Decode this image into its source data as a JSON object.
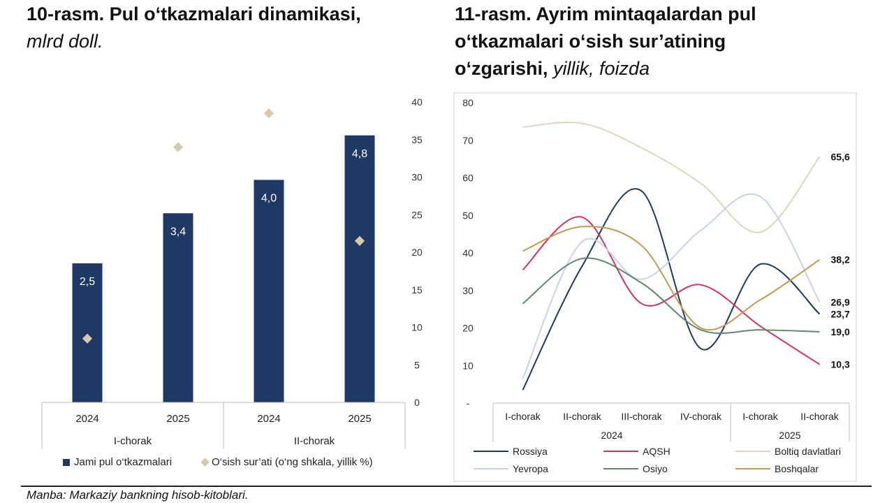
{
  "left": {
    "title_main": "10-rasm. Pul o‘tkazmalari dinamikasi,",
    "title_unit": "mlrd doll."
  },
  "right": {
    "title_line1": "11-rasm. Ayrim mintaqalardan pul",
    "title_line2": "o‘tkazmalari o‘sish sur’atining",
    "title_line3_bold": "o‘zgarishi,",
    "title_line3_italic": "yillik, foizda"
  },
  "source": "Manba: Markaziy bankning hisob-kitoblari.",
  "chart_data": [
    {
      "type": "bar",
      "categories": [
        "2024",
        "2025",
        "2024",
        "2025"
      ],
      "groups": [
        {
          "label": "I-chorak",
          "span": [
            0,
            1
          ]
        },
        {
          "label": "II-chorak",
          "span": [
            2,
            3
          ]
        }
      ],
      "series": [
        {
          "name": "Jami pul o‘tkazmalari",
          "kind": "bar",
          "axis": "left",
          "values": [
            2.5,
            3.4,
            4.0,
            4.8
          ],
          "data_labels": [
            "2,5",
            "3,4",
            "4,0",
            "4,8"
          ],
          "color": "#1f3864"
        },
        {
          "name": "O‘sish sur’ati (o‘ng shkala, yillik %)",
          "kind": "marker",
          "axis": "right",
          "values": [
            8.5,
            34.0,
            38.5,
            21.5
          ],
          "color": "#d6c9ae"
        }
      ],
      "left_axis": {
        "range": [
          0,
          5.4
        ],
        "shown": false
      },
      "right_axis": {
        "range": [
          0,
          40
        ],
        "ticks": [
          0,
          5,
          10,
          15,
          20,
          25,
          30,
          35,
          40
        ],
        "tick_labels": [
          "0",
          "5",
          "10",
          "15",
          "20",
          "25",
          "30",
          "35",
          "40"
        ]
      },
      "grid": false,
      "legend_position": "bottom"
    },
    {
      "type": "line",
      "x": [
        "I-chorak",
        "II-chorak",
        "III-chorak",
        "IV-chorak",
        "I-chorak",
        "II-chorak"
      ],
      "x_groups": [
        {
          "label": "2024",
          "span": [
            0,
            3
          ]
        },
        {
          "label": "2025",
          "span": [
            4,
            5
          ]
        }
      ],
      "ylim": [
        0,
        80
      ],
      "yticks": [
        0,
        10,
        20,
        30,
        40,
        50,
        60,
        70,
        80
      ],
      "ytick_labels": [
        "-",
        "10",
        "20",
        "30",
        "40",
        "50",
        "60",
        "70",
        "80"
      ],
      "series": [
        {
          "name": "Rossiya",
          "color": "#1f3864",
          "values": [
            3.5,
            36.5,
            56.5,
            14.5,
            37.0,
            23.7
          ]
        },
        {
          "name": "AQSH",
          "color": "#d6335c",
          "values": [
            35.5,
            49.5,
            26.5,
            31.5,
            20.5,
            10.3
          ]
        },
        {
          "name": "Boltiq davlatlari",
          "color": "#ddd6be",
          "values": [
            73.5,
            74.5,
            68.0,
            58.5,
            45.5,
            65.6
          ]
        },
        {
          "name": "Yevropa",
          "color": "#c7d3e6",
          "values": [
            6.5,
            43.0,
            33.0,
            46.0,
            55.0,
            26.9
          ]
        },
        {
          "name": "Osiyo",
          "color": "#5a8a6a",
          "values": [
            26.5,
            38.5,
            32.0,
            19.5,
            19.5,
            19.0
          ]
        },
        {
          "name": "Boshqalar",
          "color": "#c49a4e",
          "values": [
            40.5,
            47.0,
            42.0,
            20.0,
            27.5,
            38.2
          ]
        }
      ],
      "end_labels": [
        {
          "series": "Boltiq davlatlari",
          "text": "65,6"
        },
        {
          "series": "Boshqalar",
          "text": "38,2"
        },
        {
          "series": "Yevropa",
          "text": "26,9"
        },
        {
          "series": "Rossiya",
          "text": "23,7"
        },
        {
          "series": "Osiyo",
          "text": "19,0"
        },
        {
          "series": "AQSH",
          "text": "10,3"
        }
      ],
      "grid": false,
      "legend_position": "bottom"
    }
  ]
}
